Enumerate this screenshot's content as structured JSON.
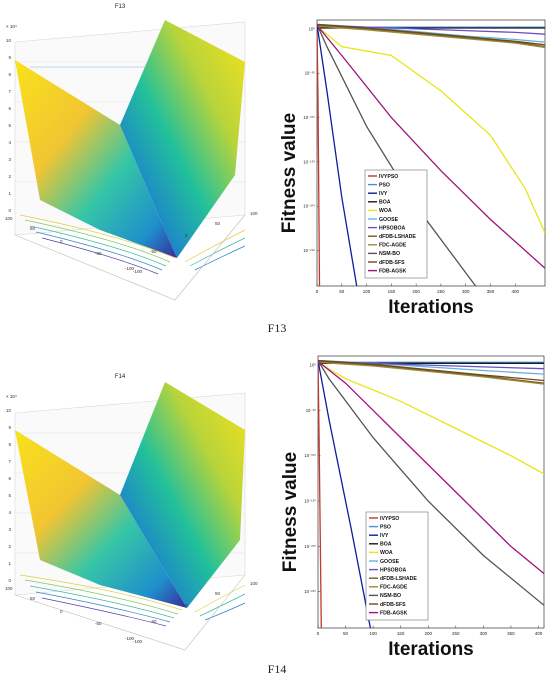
{
  "figure": {
    "panels": [
      {
        "label": "F13",
        "surface": {
          "title": "F13",
          "z_ticks": [
            "0",
            "1",
            "2",
            "3",
            "4",
            "5",
            "6",
            "7",
            "8",
            "9",
            "10"
          ],
          "z_exponent": "× 10⁴",
          "x_ticks": [
            "-100",
            "-50",
            "0",
            "50",
            "100"
          ],
          "y_ticks": [
            "100",
            "50",
            "0",
            "-50",
            "-100"
          ]
        }
      },
      {
        "label": "F14",
        "surface": {
          "title": "F14",
          "z_ticks": [
            "0",
            "1",
            "2",
            "3",
            "4",
            "5",
            "6",
            "7",
            "8",
            "9",
            "10"
          ],
          "z_exponent": "× 10⁴",
          "x_ticks": [
            "-100",
            "-50",
            "0",
            "50",
            "100"
          ],
          "y_ticks": [
            "100",
            "50",
            "0",
            "-50",
            "-100"
          ]
        }
      }
    ]
  },
  "legend_colors": [
    "#c0392b",
    "#4a90d9",
    "#0b1f9c",
    "#1a1a1a",
    "#e6e619",
    "#6ab0de",
    "#6a4fc9",
    "#7a5a1a",
    "#9c8a3a",
    "#555555",
    "#6b4a1e",
    "#a0157a"
  ],
  "chart_data": [
    {
      "type": "line",
      "title": "",
      "xlabel": "Iterations",
      "ylabel": "Fitness value",
      "yscale": "log",
      "xlim": [
        0,
        460
      ],
      "ylim_exp": [
        -290,
        10
      ],
      "x_ticks": [
        0,
        50,
        100,
        150,
        200,
        250,
        300,
        350,
        400
      ],
      "y_ticks": [
        "10⁰",
        "10⁻⁵⁰",
        "10⁻¹⁰⁰",
        "10⁻¹⁵⁰",
        "10⁻²⁰⁰",
        "10⁻²⁵⁰"
      ],
      "y_tick_exp": [
        0,
        -50,
        -100,
        -150,
        -200,
        -250
      ],
      "legend_position": "bottom-left",
      "series": [
        {
          "name": "IVYPSO",
          "x": [
            0,
            2,
            5
          ],
          "y_exp": [
            5,
            -80,
            -290
          ]
        },
        {
          "name": "PSO",
          "x": [
            0,
            460
          ],
          "y_exp": [
            2,
            2
          ]
        },
        {
          "name": "IVY",
          "x": [
            0,
            20,
            50,
            80
          ],
          "y_exp": [
            5,
            -70,
            -190,
            -290
          ]
        },
        {
          "name": "BOA",
          "x": [
            0,
            460
          ],
          "y_exp": [
            1,
            1
          ]
        },
        {
          "name": "WOA",
          "x": [
            0,
            50,
            150,
            250,
            350,
            420,
            460
          ],
          "y_exp": [
            3,
            -20,
            -30,
            -70,
            -120,
            -180,
            -230
          ]
        },
        {
          "name": "GOOSE",
          "x": [
            0,
            100,
            200,
            300,
            400,
            460
          ],
          "y_exp": [
            5,
            2,
            -3,
            -8,
            -12,
            -15
          ]
        },
        {
          "name": "HPSOBOA",
          "x": [
            0,
            100,
            200,
            300,
            400,
            460
          ],
          "y_exp": [
            4,
            2,
            0,
            -2,
            -4,
            -6
          ]
        },
        {
          "name": "dFDB-LSHADE",
          "x": [
            0,
            100,
            200,
            300,
            400,
            460
          ],
          "y_exp": [
            4,
            0,
            -5,
            -10,
            -15,
            -20
          ]
        },
        {
          "name": "FDC-AGDE",
          "x": [
            0,
            100,
            200,
            300,
            400,
            460
          ],
          "y_exp": [
            3,
            -1,
            -6,
            -11,
            -16,
            -21
          ]
        },
        {
          "name": "NSM-BO",
          "x": [
            0,
            20,
            100,
            200,
            320
          ],
          "y_exp": [
            5,
            -20,
            -110,
            -200,
            -290
          ]
        },
        {
          "name": "dFDB-SFS",
          "x": [
            0,
            100,
            200,
            300,
            400,
            460
          ],
          "y_exp": [
            5,
            1,
            -4,
            -9,
            -14,
            -18
          ]
        },
        {
          "name": "FDB-AGSK",
          "x": [
            0,
            50,
            150,
            250,
            350,
            420,
            460
          ],
          "y_exp": [
            4,
            -30,
            -100,
            -160,
            -215,
            -250,
            -270
          ]
        }
      ]
    },
    {
      "type": "line",
      "title": "",
      "xlabel": "Iterations",
      "ylabel": "Fitness value",
      "yscale": "log",
      "xlim": [
        0,
        410
      ],
      "ylim_exp": [
        -290,
        10
      ],
      "x_ticks": [
        0,
        50,
        100,
        150,
        200,
        250,
        300,
        350,
        400
      ],
      "y_ticks": [
        "10⁰",
        "10⁻⁵⁰",
        "10⁻¹⁰⁰",
        "10⁻¹⁵⁰",
        "10⁻²⁰⁰",
        "10⁻²⁵⁰"
      ],
      "y_tick_exp": [
        0,
        -50,
        -100,
        -150,
        -200,
        -250
      ],
      "legend_position": "bottom-left",
      "series": [
        {
          "name": "IVYPSO",
          "x": [
            0,
            2,
            6
          ],
          "y_exp": [
            5,
            -80,
            -290
          ]
        },
        {
          "name": "PSO",
          "x": [
            0,
            410
          ],
          "y_exp": [
            3,
            3
          ]
        },
        {
          "name": "IVY",
          "x": [
            0,
            20,
            60,
            95
          ],
          "y_exp": [
            5,
            -60,
            -180,
            -290
          ]
        },
        {
          "name": "BOA",
          "x": [
            0,
            410
          ],
          "y_exp": [
            2,
            2
          ]
        },
        {
          "name": "WOA",
          "x": [
            0,
            50,
            150,
            250,
            350,
            410
          ],
          "y_exp": [
            3,
            -15,
            -40,
            -70,
            -100,
            -120
          ]
        },
        {
          "name": "GOOSE",
          "x": [
            0,
            100,
            200,
            300,
            410
          ],
          "y_exp": [
            5,
            2,
            -2,
            -6,
            -10
          ]
        },
        {
          "name": "HPSOBOA",
          "x": [
            0,
            100,
            200,
            300,
            410
          ],
          "y_exp": [
            4,
            2,
            0,
            -2,
            -4
          ]
        },
        {
          "name": "dFDB-LSHADE",
          "x": [
            0,
            100,
            200,
            300,
            410
          ],
          "y_exp": [
            4,
            0,
            -6,
            -12,
            -20
          ]
        },
        {
          "name": "FDC-AGDE",
          "x": [
            0,
            100,
            200,
            300,
            410
          ],
          "y_exp": [
            3,
            -1,
            -7,
            -13,
            -21
          ]
        },
        {
          "name": "NSM-BO",
          "x": [
            0,
            20,
            100,
            200,
            300,
            410
          ],
          "y_exp": [
            5,
            -15,
            -80,
            -150,
            -210,
            -265
          ]
        },
        {
          "name": "dFDB-SFS",
          "x": [
            0,
            100,
            200,
            300,
            410
          ],
          "y_exp": [
            5,
            1,
            -5,
            -11,
            -17
          ]
        },
        {
          "name": "FDB-AGSK",
          "x": [
            0,
            50,
            150,
            250,
            350,
            410
          ],
          "y_exp": [
            4,
            -20,
            -80,
            -140,
            -200,
            -230
          ]
        }
      ]
    }
  ]
}
